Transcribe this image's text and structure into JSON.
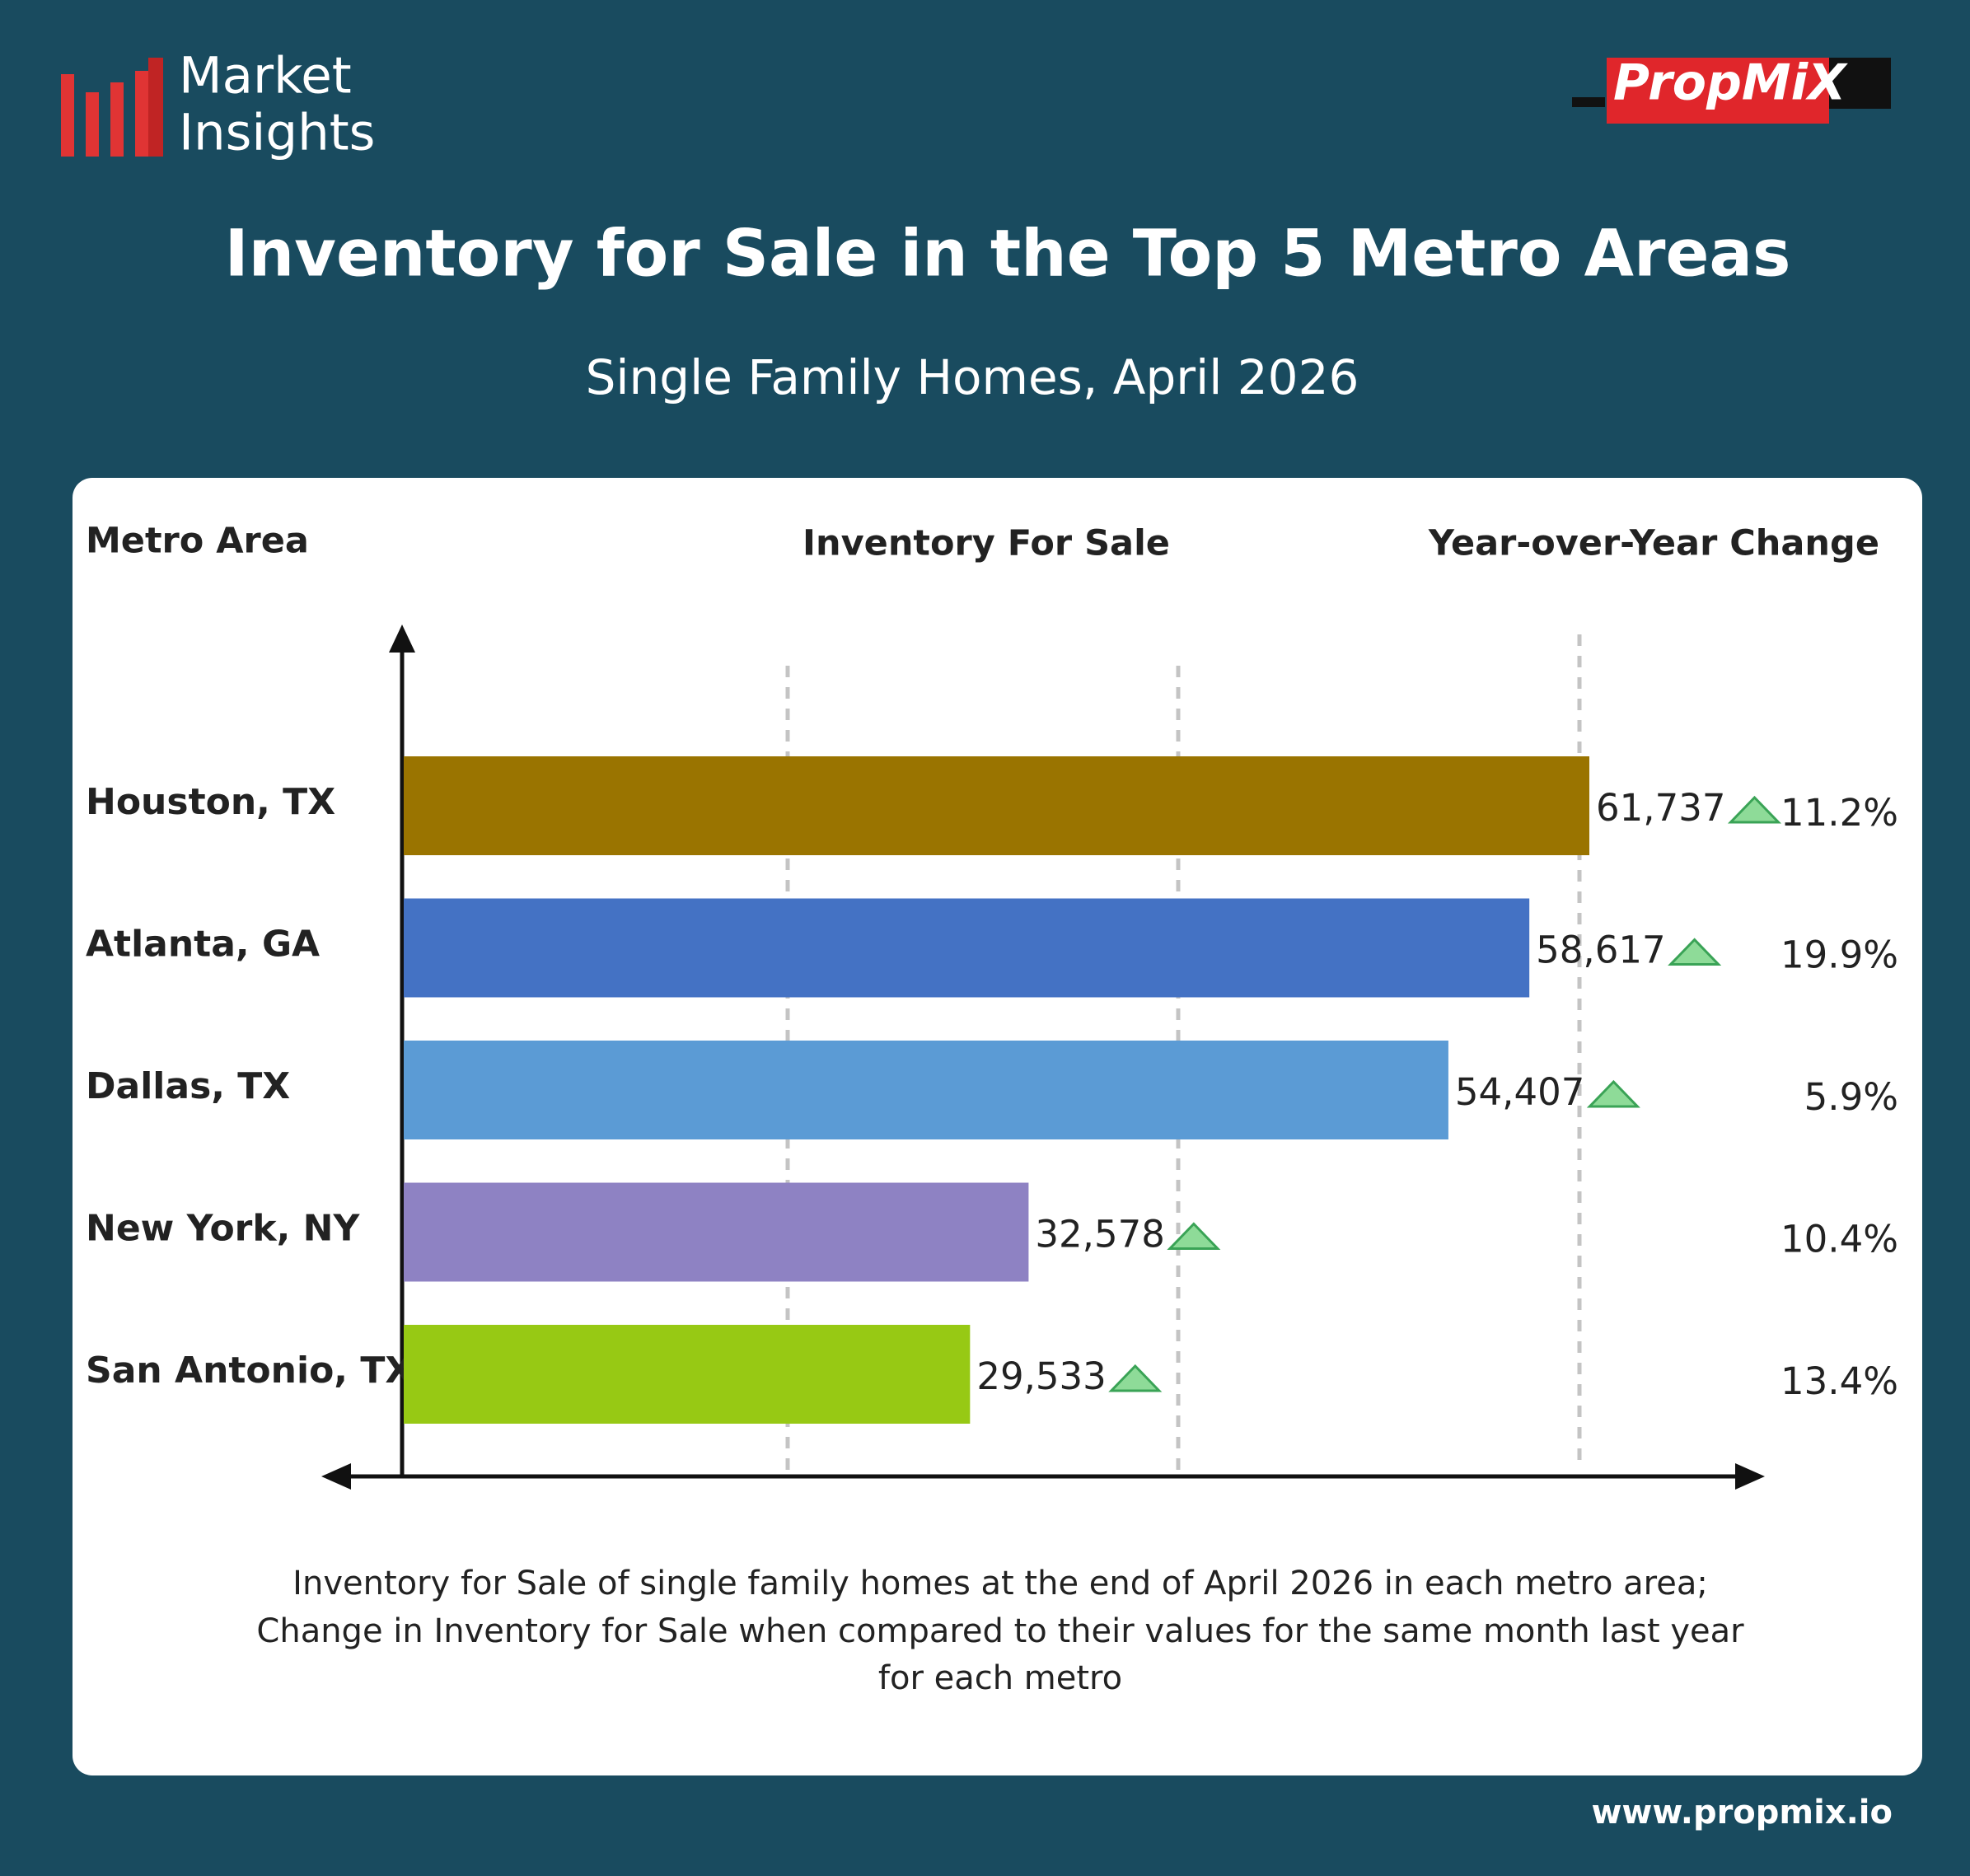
{
  "brand": {
    "line1": "Market",
    "line2": "Insights",
    "logo": "PropMiX",
    "website": "www.propmix.io"
  },
  "chart_data": {
    "type": "bar",
    "orientation": "horizontal",
    "title": "Inventory for Sale in the Top 5 Metro Areas",
    "subtitle": "Single Family Homes, April 2026",
    "category_header": "Metro Area",
    "value_header": "Inventory For Sale",
    "categories": [
      "Houston, TX",
      "Atlanta, GA",
      "Dallas, TX",
      "New York, NY",
      "San Antonio, TX"
    ],
    "values": [
      61737,
      58617,
      54407,
      32578,
      29533
    ],
    "value_labels": [
      "61,737",
      "58,617",
      "54,407",
      "32,578",
      "29,533"
    ],
    "colors": [
      "#9a7400",
      "#4472c4",
      "#5b9bd5",
      "#8e82c3",
      "#97c914"
    ],
    "change": {
      "name": "Year-over-Year Change",
      "values": [
        11.2,
        19.9,
        5.9,
        10.4,
        13.4
      ],
      "value_labels": [
        "11.2%",
        "19.9%",
        "5.9%",
        "10.4%",
        "13.4%"
      ]
    },
    "footnote": [
      "Inventory for Sale of single family homes at the end of April 2026 in each metro area;",
      "Change in Inventory for Sale when compared to their values for the same month last year",
      "for each metro"
    ]
  }
}
